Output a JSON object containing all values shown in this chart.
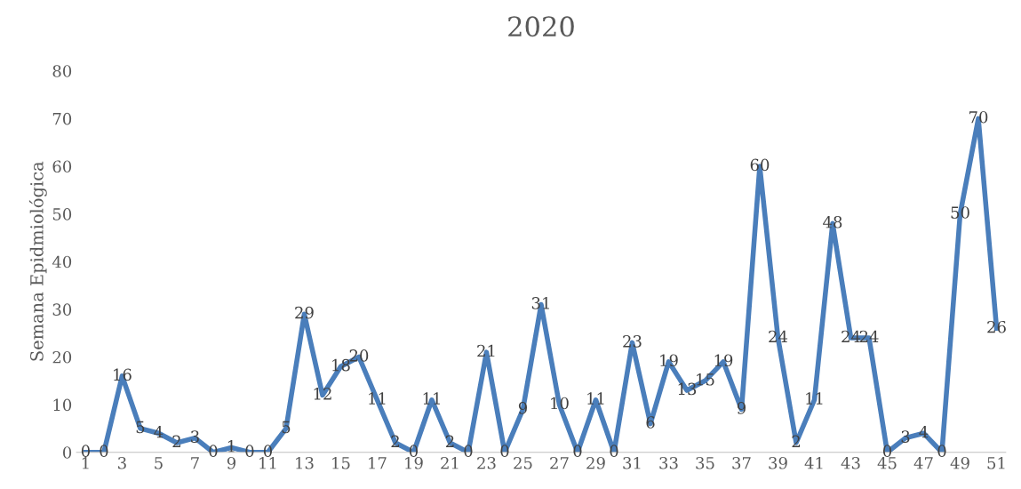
{
  "chart_data": {
    "type": "line",
    "title": "2020",
    "ylabel": "Semana Epidmiológica",
    "categories": [
      "1",
      null,
      "3",
      null,
      "5",
      null,
      "7",
      null,
      "9",
      null,
      "11",
      null,
      "13",
      null,
      "15",
      null,
      "17",
      null,
      "19",
      null,
      "21",
      null,
      "23",
      null,
      "25",
      null,
      "27",
      null,
      "29",
      null,
      "31",
      null,
      "33",
      null,
      "35",
      null,
      "37",
      null,
      "39",
      null,
      "41",
      null,
      "43",
      null,
      "45",
      null,
      "47",
      null,
      "49",
      null,
      "51"
    ],
    "series": [
      {
        "color": "#4a7ebb",
        "values": [
          0,
          0,
          16,
          5,
          4,
          2,
          3,
          0,
          1,
          0,
          0,
          5,
          29,
          12,
          18,
          20,
          11,
          2,
          0,
          11,
          2,
          0,
          21,
          0,
          9,
          31,
          10,
          0,
          11,
          0,
          23,
          6,
          19,
          13,
          15,
          19,
          9,
          60,
          24,
          2,
          11,
          48,
          24,
          24,
          0,
          3,
          4,
          0,
          50,
          70,
          26
        ]
      }
    ],
    "ylim": [
      0,
      80
    ],
    "yticks": [
      0,
      10,
      20,
      30,
      40,
      50,
      60,
      70,
      80
    ],
    "grid": false,
    "data_labels": true,
    "marker": "none",
    "line_style": "solid",
    "legend": false
  }
}
